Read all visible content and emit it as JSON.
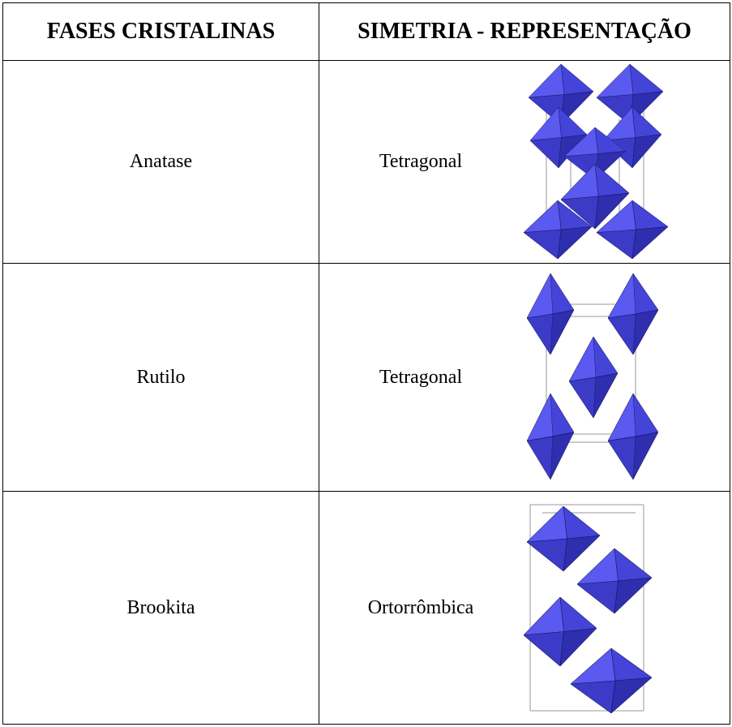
{
  "header": {
    "columns": [
      "FASES CRISTALINAS",
      "SIMETRIA - REPRESENTAÇÃO"
    ]
  },
  "table": {
    "rows": [
      [
        "Anatase",
        "Tetragonal"
      ],
      [
        "Rutilo",
        "Tetragonal"
      ],
      [
        "Brookita",
        "Ortorrômbica"
      ]
    ]
  }
}
